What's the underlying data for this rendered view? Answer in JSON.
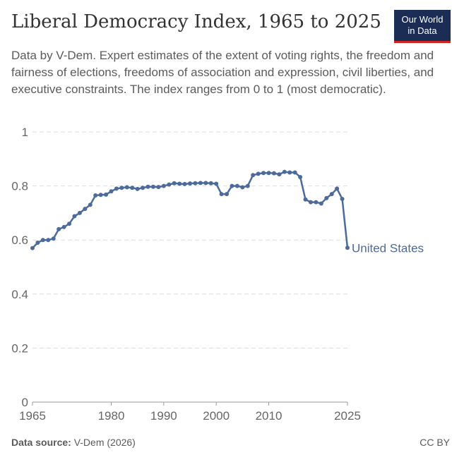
{
  "header": {
    "title": "Liberal Democracy Index, 1965 to 2025",
    "subtitle": "Data by V-Dem. Expert estimates of the extent of voting rights, the freedom and fairness of elections, freedoms of association and expression, civil liberties, and executive constraints. The index ranges from 0 to 1 (most democratic).",
    "logo_line1": "Our World",
    "logo_line2": "in Data"
  },
  "footer": {
    "source_label": "Data source:",
    "source_text": "V-Dem (2026)",
    "license": "CC BY"
  },
  "colors": {
    "series": "#4c6a9c",
    "grid": "#dddddd",
    "axis": "#999999",
    "logo_bg": "#1b2d55",
    "logo_accent": "#ce261e"
  },
  "chart_data": {
    "type": "line",
    "title": "Liberal Democracy Index, 1965 to 2025",
    "xlabel": "",
    "ylabel": "",
    "xlim": [
      1965,
      2025
    ],
    "ylim": [
      0,
      1
    ],
    "x_ticks": [
      1965,
      1980,
      1990,
      2000,
      2010,
      2025
    ],
    "y_ticks": [
      0,
      0.2,
      0.4,
      0.6,
      0.8,
      1
    ],
    "y_tick_labels": [
      "0",
      "0.2",
      "0.4",
      "0.6",
      "0.8",
      "1"
    ],
    "grid": "horizontal dashed",
    "series": [
      {
        "name": "United States",
        "x": [
          1965,
          1966,
          1967,
          1968,
          1969,
          1970,
          1971,
          1972,
          1973,
          1974,
          1975,
          1976,
          1977,
          1978,
          1979,
          1980,
          1981,
          1982,
          1983,
          1984,
          1985,
          1986,
          1987,
          1988,
          1989,
          1990,
          1991,
          1992,
          1993,
          1994,
          1995,
          1996,
          1997,
          1998,
          1999,
          2000,
          2001,
          2002,
          2003,
          2004,
          2005,
          2006,
          2007,
          2008,
          2009,
          2010,
          2011,
          2012,
          2013,
          2014,
          2015,
          2016,
          2017,
          2018,
          2019,
          2020,
          2021,
          2022,
          2023,
          2024,
          2025
        ],
        "values": [
          0.57,
          0.59,
          0.6,
          0.6,
          0.605,
          0.64,
          0.648,
          0.66,
          0.688,
          0.7,
          0.715,
          0.73,
          0.765,
          0.767,
          0.768,
          0.78,
          0.79,
          0.793,
          0.795,
          0.793,
          0.789,
          0.793,
          0.797,
          0.797,
          0.796,
          0.8,
          0.805,
          0.81,
          0.808,
          0.807,
          0.809,
          0.81,
          0.811,
          0.811,
          0.81,
          0.808,
          0.77,
          0.77,
          0.8,
          0.8,
          0.795,
          0.8,
          0.84,
          0.845,
          0.848,
          0.848,
          0.847,
          0.843,
          0.852,
          0.85,
          0.85,
          0.833,
          0.75,
          0.74,
          0.74,
          0.735,
          0.755,
          0.77,
          0.79,
          0.752,
          0.571
        ]
      }
    ]
  }
}
